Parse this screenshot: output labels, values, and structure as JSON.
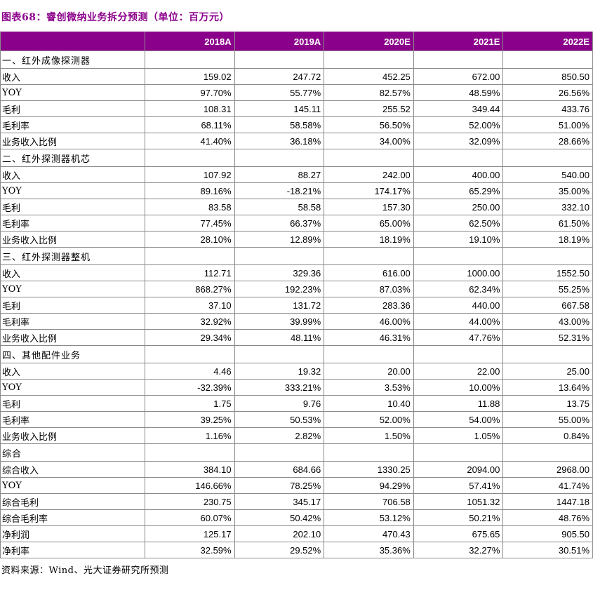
{
  "figure": {
    "title": "图表68：睿创微纳业务拆分预测（单位：百万元）",
    "source": "资料来源：Wind、光大证券研究所预测"
  },
  "colors": {
    "title_text": "#8B008B",
    "header_bg": "#8B008B",
    "header_text": "#FFFFFF",
    "border": "#8A8A8A"
  },
  "table": {
    "columns": [
      "",
      "2018A",
      "2019A",
      "2020E",
      "2021E",
      "2022E"
    ],
    "rows": [
      {
        "kind": "section",
        "label": "一、红外成像探测器"
      },
      {
        "kind": "data",
        "label": "收入",
        "values": [
          "159.02",
          "247.72",
          "452.25",
          "672.00",
          "850.50"
        ]
      },
      {
        "kind": "data",
        "label": "YOY",
        "values": [
          "97.70%",
          "55.77%",
          "82.57%",
          "48.59%",
          "26.56%"
        ]
      },
      {
        "kind": "data",
        "label": "毛利",
        "values": [
          "108.31",
          "145.11",
          "255.52",
          "349.44",
          "433.76"
        ]
      },
      {
        "kind": "data",
        "label": "毛利率",
        "values": [
          "68.11%",
          "58.58%",
          "56.50%",
          "52.00%",
          "51.00%"
        ]
      },
      {
        "kind": "data",
        "label": "业务收入比例",
        "values": [
          "41.40%",
          "36.18%",
          "34.00%",
          "32.09%",
          "28.66%"
        ]
      },
      {
        "kind": "section",
        "label": "二、红外探测器机芯"
      },
      {
        "kind": "data",
        "label": "收入",
        "values": [
          "107.92",
          "88.27",
          "242.00",
          "400.00",
          "540.00"
        ]
      },
      {
        "kind": "data",
        "label": "YOY",
        "values": [
          "89.16%",
          "-18.21%",
          "174.17%",
          "65.29%",
          "35.00%"
        ]
      },
      {
        "kind": "data",
        "label": "毛利",
        "values": [
          "83.58",
          "58.58",
          "157.30",
          "250.00",
          "332.10"
        ]
      },
      {
        "kind": "data",
        "label": "毛利率",
        "values": [
          "77.45%",
          "66.37%",
          "65.00%",
          "62.50%",
          "61.50%"
        ]
      },
      {
        "kind": "data",
        "label": "业务收入比例",
        "values": [
          "28.10%",
          "12.89%",
          "18.19%",
          "19.10%",
          "18.19%"
        ]
      },
      {
        "kind": "section",
        "label": "三、红外探测器整机"
      },
      {
        "kind": "data",
        "label": "收入",
        "values": [
          "112.71",
          "329.36",
          "616.00",
          "1000.00",
          "1552.50"
        ]
      },
      {
        "kind": "data",
        "label": "YOY",
        "values": [
          "868.27%",
          "192.23%",
          "87.03%",
          "62.34%",
          "55.25%"
        ]
      },
      {
        "kind": "data",
        "label": "毛利",
        "values": [
          "37.10",
          "131.72",
          "283.36",
          "440.00",
          "667.58"
        ]
      },
      {
        "kind": "data",
        "label": "毛利率",
        "values": [
          "32.92%",
          "39.99%",
          "46.00%",
          "44.00%",
          "43.00%"
        ]
      },
      {
        "kind": "data",
        "label": "业务收入比例",
        "values": [
          "29.34%",
          "48.11%",
          "46.31%",
          "47.76%",
          "52.31%"
        ]
      },
      {
        "kind": "section",
        "label": "四、其他配件业务"
      },
      {
        "kind": "data",
        "label": "收入",
        "values": [
          "4.46",
          "19.32",
          "20.00",
          "22.00",
          "25.00"
        ]
      },
      {
        "kind": "data",
        "label": "YOY",
        "values": [
          "-32.39%",
          "333.21%",
          "3.53%",
          "10.00%",
          "13.64%"
        ]
      },
      {
        "kind": "data",
        "label": "毛利",
        "values": [
          "1.75",
          "9.76",
          "10.40",
          "11.88",
          "13.75"
        ]
      },
      {
        "kind": "data",
        "label": "毛利率",
        "values": [
          "39.25%",
          "50.53%",
          "52.00%",
          "54.00%",
          "55.00%"
        ]
      },
      {
        "kind": "data",
        "label": "业务收入比例",
        "values": [
          "1.16%",
          "2.82%",
          "1.50%",
          "1.05%",
          "0.84%"
        ]
      },
      {
        "kind": "section",
        "label": "综合"
      },
      {
        "kind": "data",
        "label": "综合收入",
        "values": [
          "384.10",
          "684.66",
          "1330.25",
          "2094.00",
          "2968.00"
        ]
      },
      {
        "kind": "data",
        "label": "YOY",
        "values": [
          "146.66%",
          "78.25%",
          "94.29%",
          "57.41%",
          "41.74%"
        ]
      },
      {
        "kind": "data",
        "label": "综合毛利",
        "values": [
          "230.75",
          "345.17",
          "706.58",
          "1051.32",
          "1447.18"
        ]
      },
      {
        "kind": "data",
        "label": "综合毛利率",
        "values": [
          "60.07%",
          "50.42%",
          "53.12%",
          "50.21%",
          "48.76%"
        ]
      },
      {
        "kind": "data",
        "label": "净利润",
        "values": [
          "125.17",
          "202.10",
          "470.43",
          "675.65",
          "905.50"
        ]
      },
      {
        "kind": "data",
        "label": "净利率",
        "values": [
          "32.59%",
          "29.52%",
          "35.36%",
          "32.27%",
          "30.51%"
        ]
      }
    ]
  }
}
